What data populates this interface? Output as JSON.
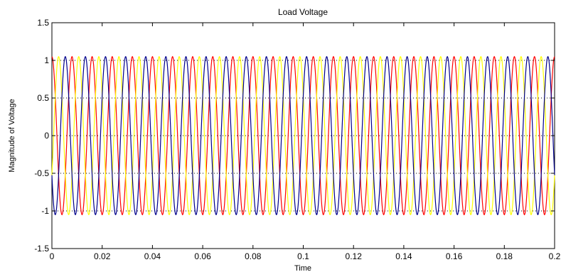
{
  "chart_data": {
    "type": "line",
    "title": "Load Voltage",
    "xlabel": "Time",
    "ylabel": "Magnitude of Voltage",
    "xlim": [
      0,
      0.2
    ],
    "ylim": [
      -1.5,
      1.5
    ],
    "x_ticks": [
      0,
      0.02,
      0.04,
      0.06,
      0.08,
      0.1,
      0.12,
      0.14,
      0.16,
      0.18,
      0.2
    ],
    "x_tick_labels": [
      "0",
      "0.02",
      "0.04",
      "0.06",
      "0.08",
      "0.1",
      "0.12",
      "0.14",
      "0.16",
      "0.18",
      "0.2"
    ],
    "y_ticks": [
      -1.5,
      -1,
      -0.5,
      0,
      0.5,
      1,
      1.5
    ],
    "y_tick_labels": [
      "-1.5",
      "-1",
      "-0.5",
      "0",
      "0.5",
      "1",
      "1.5"
    ],
    "grid": true,
    "series": [
      {
        "color": "#ff0000",
        "waveform": "sine",
        "amplitude": 1.05,
        "frequency_hz": 125,
        "phase_deg": 90,
        "x_samples": [
          0,
          0.002,
          0.004,
          0.006,
          0.008,
          0.01
        ],
        "y_samples": [
          1.05,
          -0.74,
          0.0,
          0.74,
          -1.05,
          0.74
        ]
      },
      {
        "color": "#ffff00",
        "waveform": "sine",
        "amplitude": 1.05,
        "frequency_hz": 125,
        "phase_deg": -30,
        "x_samples": [
          0,
          0.002,
          0.004,
          0.006,
          0.008,
          0.01
        ],
        "y_samples": [
          -0.53,
          0.92,
          -0.92,
          0.53,
          1.05,
          -1.01
        ]
      },
      {
        "color": "#00008b",
        "waveform": "sine",
        "amplitude": 1.05,
        "frequency_hz": 125,
        "phase_deg": 210,
        "x_samples": [
          0,
          0.002,
          0.004,
          0.006,
          0.008,
          0.01
        ],
        "y_samples": [
          -0.53,
          -0.18,
          0.92,
          -1.03,
          0.53,
          0.28
        ]
      }
    ]
  }
}
